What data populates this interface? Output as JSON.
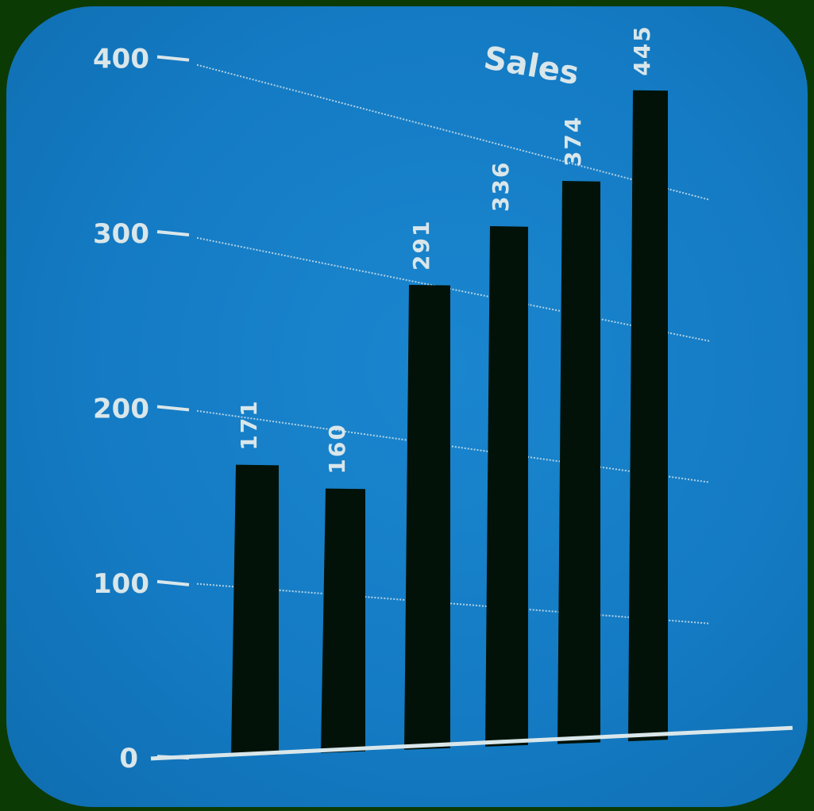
{
  "chart_data": {
    "type": "bar",
    "title": "Sales",
    "categories": [
      "",
      "",
      "",
      "",
      "",
      ""
    ],
    "values": [
      171,
      160,
      291,
      336,
      374,
      445
    ],
    "value_labels": [
      "171",
      "160",
      "291",
      "336",
      "374",
      "445"
    ],
    "ylim": [
      0,
      400
    ],
    "yticks": [
      0,
      100,
      200,
      300,
      400
    ],
    "ytick_labels": [
      "0",
      "100",
      "200",
      "300",
      "400"
    ],
    "grid": true,
    "colors": {
      "background": "#147bc4",
      "bars": "#021208",
      "text": "#d9e6ea",
      "frame": "#0c3a05"
    }
  }
}
